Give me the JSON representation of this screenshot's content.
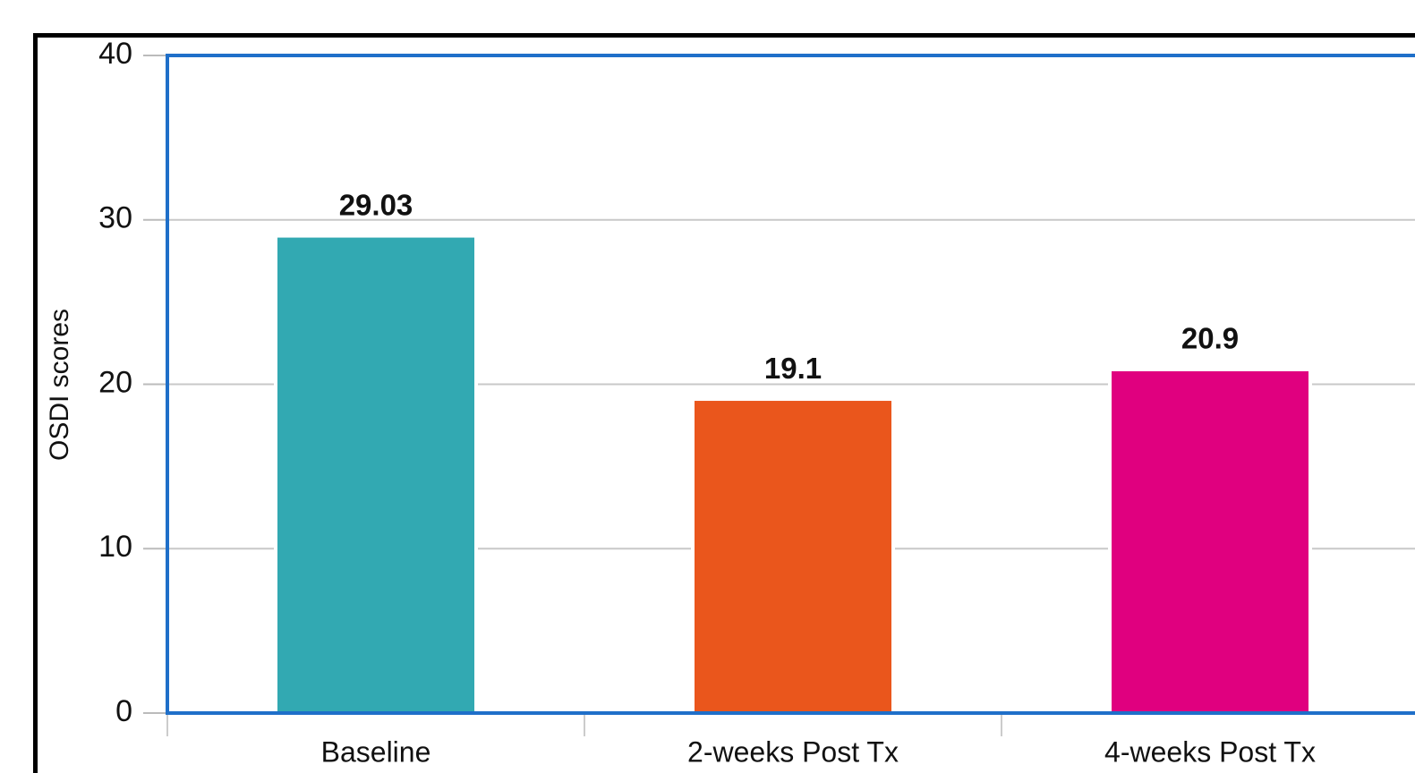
{
  "chart_data": {
    "type": "bar",
    "ylabel": "OSDI scores",
    "categories": [
      "Baseline",
      "2-weeks Post Tx",
      "4-weeks Post Tx"
    ],
    "values": [
      29.03,
      19.1,
      20.9
    ],
    "colors": [
      "#32a9b2",
      "#ea561c",
      "#e0007f"
    ],
    "ylim": [
      0,
      40
    ],
    "yticks": [
      0,
      10,
      20,
      30,
      40
    ],
    "grid": true
  }
}
